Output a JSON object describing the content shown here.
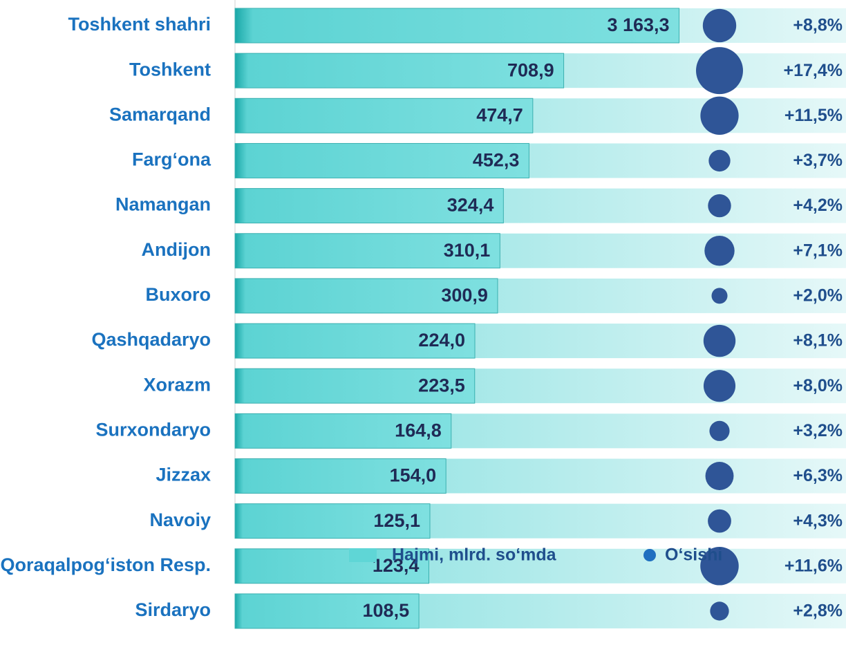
{
  "chart_data": {
    "type": "bar-bubble",
    "categories": [
      "Toshkent  shahri",
      "Toshkent",
      "Samarqand",
      "Farg‘ona",
      "Namangan",
      "Andijon",
      "Buxoro",
      "Qashqadaryo",
      "Xorazm",
      "Surxondaryo",
      "Jizzax",
      "Navoiy",
      "Qoraqalpog‘iston Resp.",
      "Sirdaryo"
    ],
    "series": [
      {
        "name": "Hajmi, mlrd. so‘mda",
        "color": "#5fd6d6",
        "values": [
          3163.3,
          708.9,
          474.7,
          452.3,
          324.4,
          310.1,
          300.9,
          224.0,
          223.5,
          164.8,
          154.0,
          125.1,
          123.4,
          108.5
        ],
        "value_labels": [
          "3 163,3",
          "708,9",
          "474,7",
          "452,3",
          "324,4",
          "310,1",
          "300,9",
          "224,0",
          "223,5",
          "164,8",
          "154,0",
          "125,1",
          "123,4",
          "108,5"
        ]
      },
      {
        "name": "O‘sishi",
        "color": "#2f5597",
        "values": [
          8.8,
          17.4,
          11.5,
          3.7,
          4.2,
          7.1,
          2.0,
          8.1,
          8.0,
          3.2,
          6.3,
          4.3,
          11.6,
          2.8
        ],
        "value_labels": [
          "+8,8%",
          "+17,4%",
          "+11,5%",
          "+3,7%",
          "+4,2%",
          "+7,1%",
          "+2,0%",
          "+8,1%",
          "+8,0%",
          "+3,2%",
          "+6,3%",
          "+4,3%",
          "+11,6%",
          "+2,8%"
        ]
      }
    ],
    "xscale": "log",
    "xlim": [
      10,
      10000
    ]
  }
}
